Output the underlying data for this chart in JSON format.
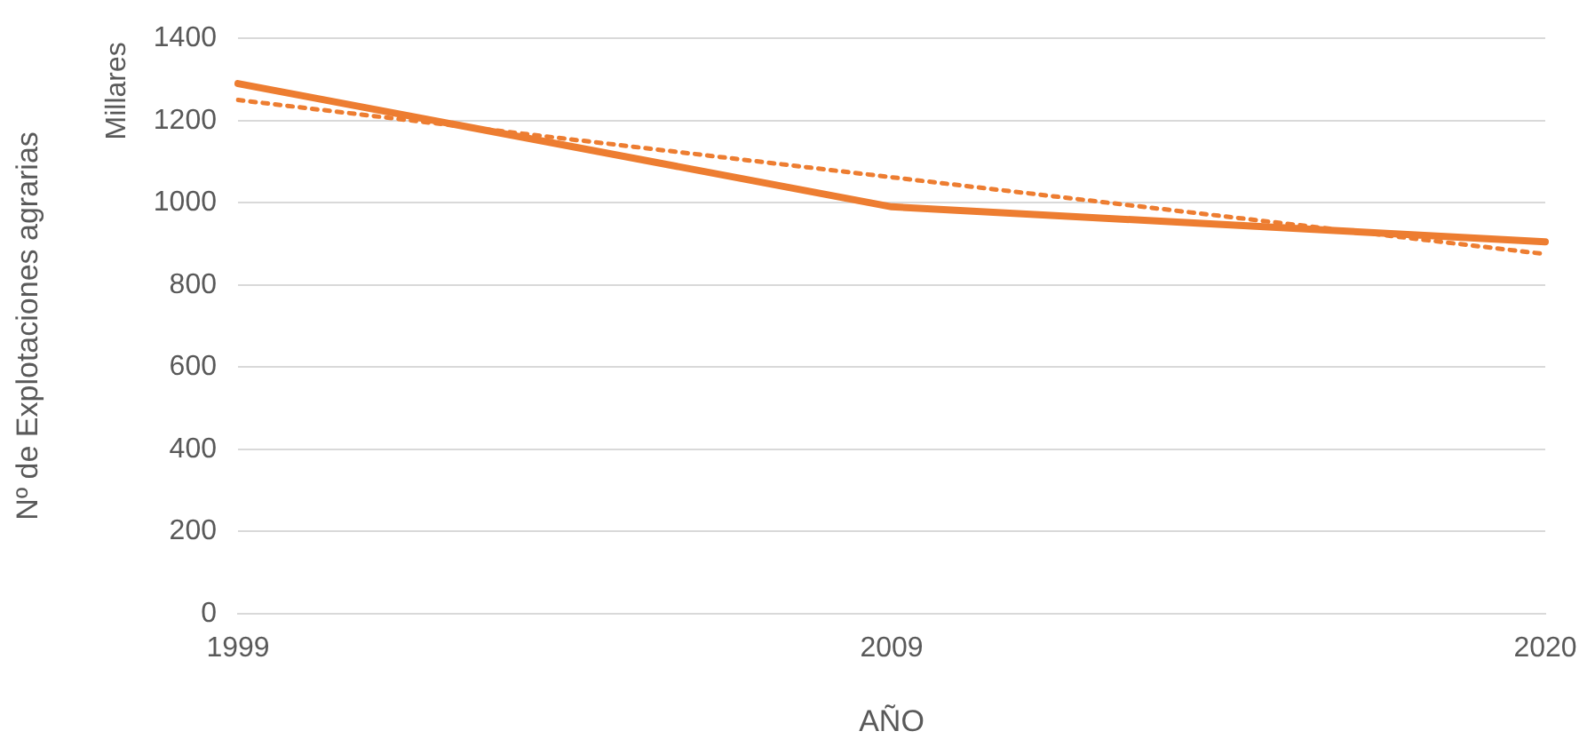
{
  "chart_data": {
    "type": "line",
    "xlabel": "AÑO",
    "ylabel": "Nº de Explotaciones agrarias",
    "annotations": [
      "Millares"
    ],
    "categories": [
      "1999",
      "2009",
      "2020"
    ],
    "series": [
      {
        "color": "#ed7d31",
        "values": [
          1290,
          990,
          905
        ],
        "line_style": "solid"
      },
      {
        "color": "#ed7d31",
        "values": [
          1250,
          1062,
          875
        ],
        "line_style": "dotted"
      }
    ],
    "ylim": [
      0,
      1400
    ],
    "yticks": [
      0,
      200,
      400,
      600,
      800,
      1000,
      1200,
      1400
    ],
    "grid": "y",
    "legend": false,
    "marker": "none"
  }
}
